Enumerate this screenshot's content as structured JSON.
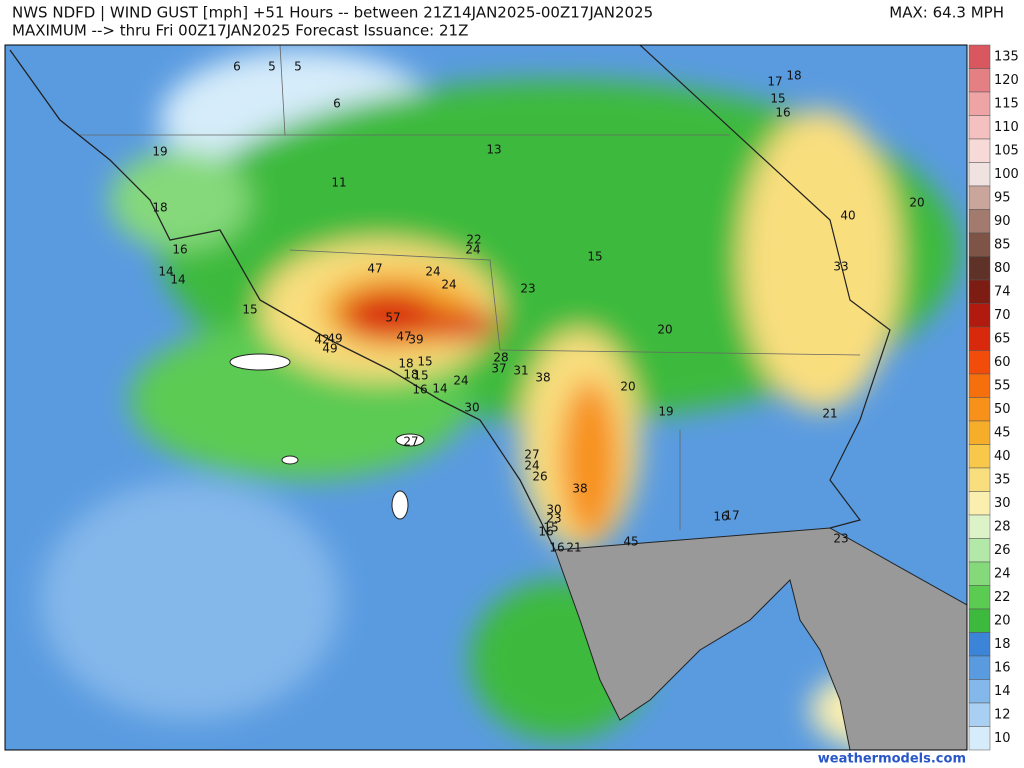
{
  "header": {
    "line1": "NWS NDFD | WIND GUST [mph] +51 Hours -- between 21Z14JAN2025-00Z17JAN2025",
    "line2": "MAXIMUM --> thru Fri 00Z17JAN2025   Forecast Issuance: 21Z",
    "max": "MAX: 64.3 MPH"
  },
  "legend": {
    "levels": [
      "135",
      "120",
      "115",
      "110",
      "105",
      "100",
      "95",
      "90",
      "85",
      "80",
      "74",
      "70",
      "65",
      "60",
      "55",
      "50",
      "45",
      "40",
      "35",
      "30",
      "28",
      "26",
      "24",
      "22",
      "20",
      "18",
      "16",
      "14",
      "12",
      "10"
    ],
    "colors": [
      "#d9585f",
      "#e47f83",
      "#eea3a5",
      "#f4c0c0",
      "#f7d9d7",
      "#efe2e0",
      "#c9a59c",
      "#a27a6e",
      "#7e5447",
      "#5e3226",
      "#7d1c12",
      "#b11a0e",
      "#d9290c",
      "#f24c0b",
      "#f5700c",
      "#f7911a",
      "#f6ad2a",
      "#f8c84a",
      "#f9de7e",
      "#fbefb0",
      "#dcf3c8",
      "#b4e8a8",
      "#85d97a",
      "#5ccb52",
      "#3dba3d",
      "#3b84d8",
      "#5a9be0",
      "#84b7ea",
      "#a9d0f2",
      "#d6ecfa"
    ]
  },
  "stations": [
    "6",
    "5",
    "5",
    "6",
    "19",
    "13",
    "11",
    "18",
    "16",
    "14",
    "14",
    "15",
    "47",
    "24",
    "22",
    "24",
    "24",
    "23",
    "15",
    "57",
    "47",
    "39",
    "42",
    "49",
    "49",
    "18",
    "15",
    "18",
    "15",
    "16",
    "14",
    "24",
    "28",
    "37",
    "31",
    "38",
    "20",
    "20",
    "19",
    "30",
    "27",
    "27",
    "24",
    "26",
    "38",
    "30",
    "23",
    "15",
    "16",
    "16",
    "21",
    "45",
    "16",
    "17",
    "23",
    "21",
    "33",
    "40",
    "20",
    "17",
    "18",
    "15",
    "16"
  ],
  "watermark": "weathermodels.com"
}
